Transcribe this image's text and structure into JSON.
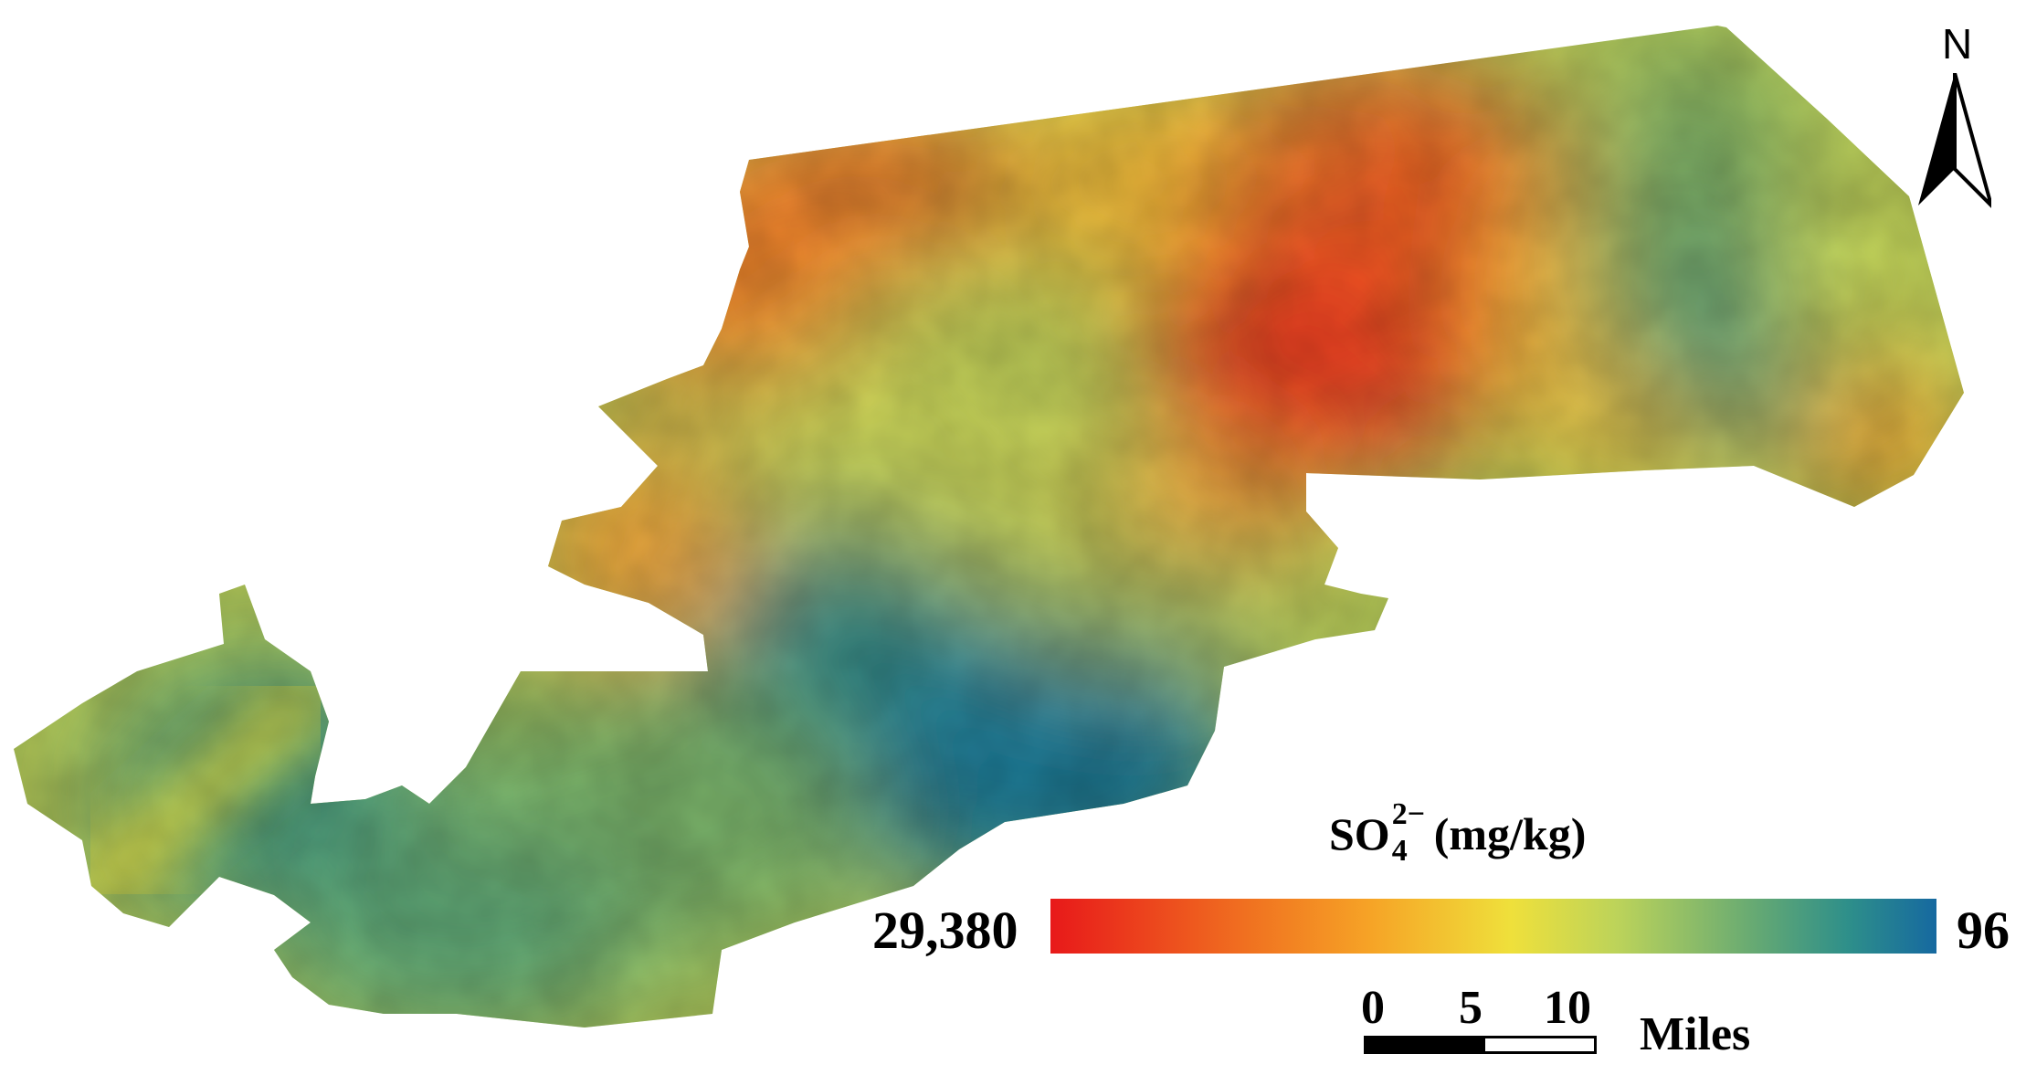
{
  "legend": {
    "title_main": "SO",
    "title_subscript": "4",
    "title_superscript": "2−",
    "title_units": "(mg/kg)",
    "max_label": "29,380",
    "min_label": "96",
    "colors": [
      "#e8191a",
      "#f07020",
      "#f6a326",
      "#efe03b",
      "#bcd35a",
      "#63a874",
      "#2e8f8a",
      "#1669a0"
    ]
  },
  "scale_bar": {
    "ticks": [
      "0",
      "5",
      "10"
    ],
    "units": "Miles"
  },
  "north_arrow": {
    "label": "N",
    "icon": "north-arrow-icon"
  }
}
